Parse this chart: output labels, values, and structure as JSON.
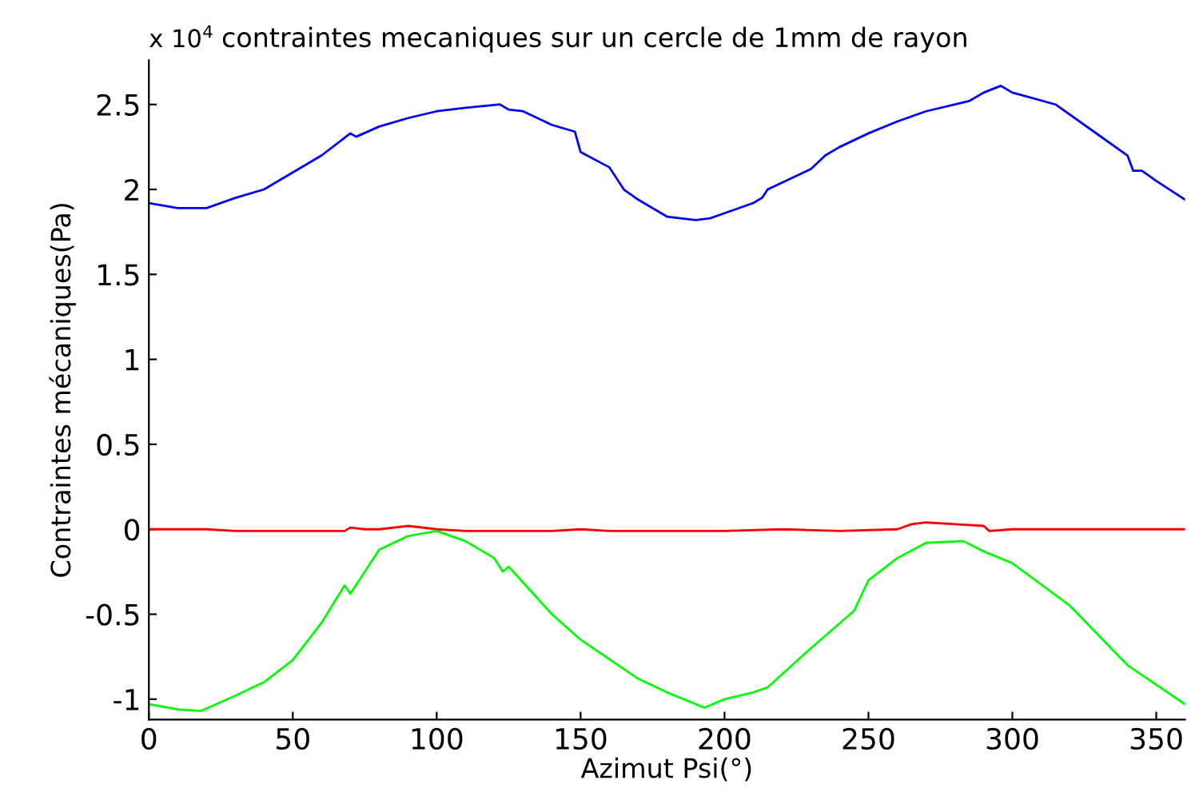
{
  "chart_data": {
    "type": "line",
    "title": "contraintes mecaniques sur un cercle de 1mm de rayon",
    "xlabel": "Azimut Psi(°)",
    "ylabel": "Contraintes mécaniques(Pa)",
    "annotations": [
      "x 10$^{4}$"
    ],
    "xlim": [
      0,
      360
    ],
    "ylim": [
      -1.12,
      2.76
    ],
    "xticks": [
      0,
      50,
      100,
      150,
      200,
      250,
      300,
      350
    ],
    "yticks": [
      -1,
      -0.5,
      0,
      0.5,
      1,
      1.5,
      2,
      2.5
    ],
    "grid": false,
    "legend": false,
    "marker": "none",
    "line_style": "solid",
    "series": [
      {
        "color": "#0000ff",
        "x": [
          0,
          10,
          20,
          30,
          40,
          50,
          60,
          70,
          72,
          80,
          90,
          100,
          110,
          122,
          125,
          130,
          140,
          148,
          150,
          160,
          165,
          170,
          180,
          190,
          195,
          200,
          210,
          213,
          215,
          230,
          235,
          240,
          250,
          260,
          270,
          285,
          290,
          296,
          300,
          315,
          330,
          340,
          342,
          345,
          350,
          360
        ],
        "values": [
          1.92,
          1.89,
          1.89,
          1.95,
          2.0,
          2.1,
          2.2,
          2.33,
          2.31,
          2.37,
          2.42,
          2.46,
          2.48,
          2.5,
          2.47,
          2.46,
          2.38,
          2.34,
          2.22,
          2.13,
          2.0,
          1.94,
          1.84,
          1.82,
          1.83,
          1.86,
          1.92,
          1.95,
          2.0,
          2.12,
          2.2,
          2.25,
          2.33,
          2.4,
          2.46,
          2.52,
          2.57,
          2.61,
          2.57,
          2.5,
          2.32,
          2.2,
          2.11,
          2.11,
          2.05,
          1.94
        ]
      },
      {
        "color": "#ff0000",
        "x": [
          0,
          20,
          30,
          40,
          60,
          68,
          70,
          75,
          80,
          90,
          100,
          110,
          120,
          140,
          150,
          160,
          180,
          190,
          200,
          220,
          240,
          260,
          265,
          270,
          280,
          290,
          292,
          300,
          320,
          340,
          360
        ],
        "values": [
          0,
          0,
          -0.01,
          -0.01,
          -0.01,
          -0.01,
          0.01,
          0,
          0,
          0.02,
          0,
          -0.01,
          -0.01,
          -0.01,
          0,
          -0.01,
          -0.01,
          -0.01,
          -0.01,
          0,
          -0.01,
          0,
          0.03,
          0.04,
          0.03,
          0.02,
          -0.01,
          0,
          0,
          0,
          0
        ]
      },
      {
        "color": "#00ff00",
        "x": [
          0,
          10,
          18,
          30,
          40,
          50,
          60,
          68,
          70,
          80,
          90,
          100,
          110,
          120,
          123,
          125,
          140,
          150,
          170,
          180,
          193,
          200,
          210,
          215,
          230,
          245,
          250,
          260,
          270,
          283,
          290,
          300,
          320,
          340,
          360
        ],
        "values": [
          -1.03,
          -1.06,
          -1.07,
          -0.98,
          -0.9,
          -0.77,
          -0.55,
          -0.33,
          -0.38,
          -0.12,
          -0.04,
          -0.01,
          -0.07,
          -0.17,
          -0.25,
          -0.22,
          -0.5,
          -0.65,
          -0.88,
          -0.96,
          -1.05,
          -1.0,
          -0.96,
          -0.93,
          -0.7,
          -0.48,
          -0.3,
          -0.17,
          -0.08,
          -0.07,
          -0.13,
          -0.2,
          -0.45,
          -0.8,
          -1.03
        ]
      }
    ]
  }
}
